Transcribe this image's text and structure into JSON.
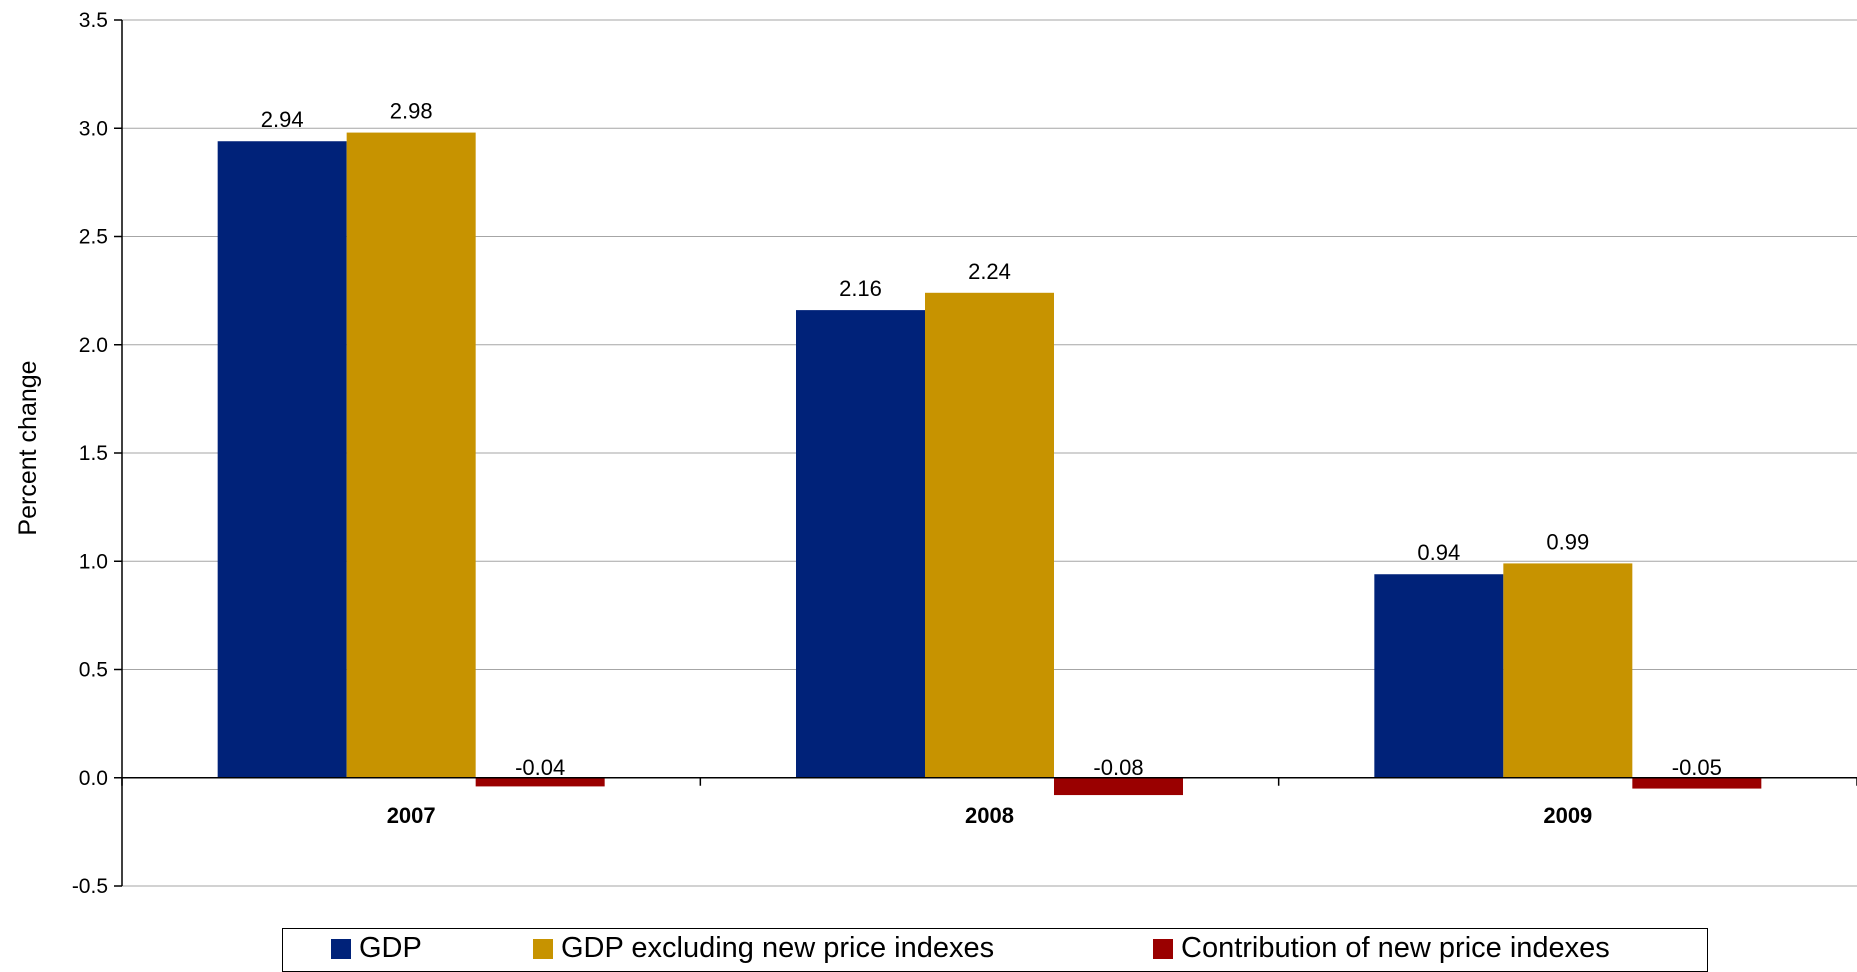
{
  "chart_data": {
    "type": "bar",
    "categories": [
      "2007",
      "2008",
      "2009"
    ],
    "series": [
      {
        "name": "GDP",
        "values": [
          2.94,
          2.16,
          0.94
        ],
        "color": "#002279"
      },
      {
        "name": "GDP excluding new price indexes",
        "values": [
          2.98,
          2.24,
          0.99
        ],
        "color": "#C79300"
      },
      {
        "name": "Contribution of new price indexes",
        "values": [
          -0.04,
          -0.08,
          -0.05
        ],
        "color": "#9A0000"
      }
    ],
    "data_labels": [
      [
        "2.94",
        "2.16",
        "0.94"
      ],
      [
        "2.98",
        "2.24",
        "0.99"
      ],
      [
        "-0.04",
        "-0.08",
        "-0.05"
      ]
    ],
    "ylabel": "Percent change",
    "xlabel": "",
    "ylim": [
      -0.5,
      3.5
    ],
    "yticks": [
      -0.5,
      0.0,
      0.5,
      1.0,
      1.5,
      2.0,
      2.5,
      3.0,
      3.5
    ],
    "ytick_labels": [
      "-0.5",
      "0.0",
      "0.5",
      "1.0",
      "1.5",
      "2.0",
      "2.5",
      "3.0",
      "3.5"
    ],
    "grid": true,
    "legend_position": "bottom"
  }
}
